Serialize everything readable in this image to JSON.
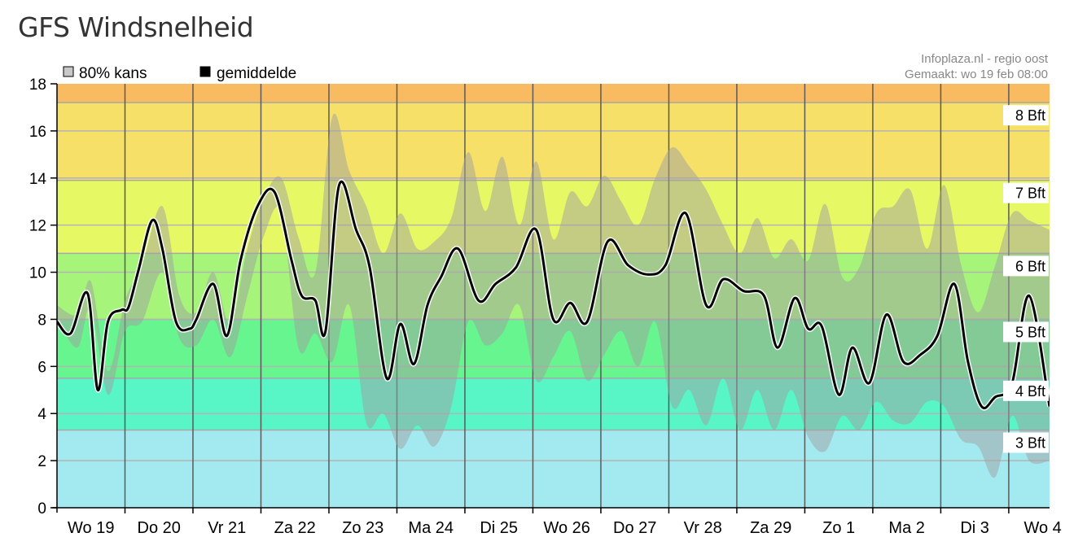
{
  "page": {
    "title": "GFS Windsnelheid"
  },
  "chart_data": {
    "type": "area",
    "ylim": [
      0,
      18
    ],
    "y_ticks": [
      0,
      2,
      4,
      6,
      8,
      10,
      12,
      14,
      16,
      18
    ],
    "x_range": [
      0,
      14.6
    ],
    "categories": [
      "Wo 19",
      "Do 20",
      "Vr 21",
      "Za 22",
      "Zo 23",
      "Ma 24",
      "Di 25",
      "Wo 26",
      "Do 27",
      "Vr 28",
      "Za 29",
      "Zo 1",
      "Ma 2",
      "Di 3",
      "Wo 4"
    ],
    "grid": true,
    "legend": {
      "placement": "top-left",
      "entries": [
        {
          "label": "80% kans",
          "color": "#c8c8c8"
        },
        {
          "label": "gemiddelde",
          "color": "#000000"
        }
      ]
    },
    "source": "Infoplaza.nl - regio oost",
    "created": "Gemaakt: wo 19 feb 08:00",
    "beaufort_bands": [
      {
        "label": "",
        "from": 0,
        "to": 3.3,
        "color": "#a3eaf0"
      },
      {
        "label": "3 Bft",
        "from": 3.3,
        "to": 5.5,
        "color": "#58f5c6"
      },
      {
        "label": "4 Bft",
        "from": 5.5,
        "to": 8,
        "color": "#66f58f"
      },
      {
        "label": "5 Bft",
        "from": 8,
        "to": 10.8,
        "color": "#a6f57a"
      },
      {
        "label": "6 Bft",
        "from": 10.8,
        "to": 13.9,
        "color": "#e6f864"
      },
      {
        "label": "7 Bft",
        "from": 13.9,
        "to": 17.2,
        "color": "#f6e068"
      },
      {
        "label": "8 Bft",
        "from": 17.2,
        "to": 18,
        "color": "#f8bb62"
      }
    ],
    "series": [
      {
        "name": "gemiddelde",
        "color": "#000000",
        "x": [
          0,
          0.2,
          0.45,
          0.6,
          0.75,
          0.95,
          1.05,
          1.2,
          1.4,
          1.55,
          1.75,
          1.95,
          2.05,
          2.3,
          2.5,
          2.7,
          2.95,
          3.2,
          3.45,
          3.6,
          3.8,
          3.95,
          4.15,
          4.4,
          4.6,
          4.85,
          5.05,
          5.25,
          5.45,
          5.65,
          5.9,
          6.2,
          6.45,
          6.75,
          7.05,
          7.3,
          7.55,
          7.8,
          8.1,
          8.4,
          8.7,
          8.95,
          9.25,
          9.55,
          9.8,
          10.1,
          10.4,
          10.6,
          10.85,
          11.05,
          11.25,
          11.5,
          11.7,
          11.95,
          12.2,
          12.45,
          12.7,
          12.95,
          13.2,
          13.4,
          13.6,
          13.8,
          14.05,
          14.3,
          14.6
        ],
        "values": [
          7.9,
          7.4,
          9.1,
          5.0,
          7.9,
          8.4,
          8.5,
          10.1,
          12.2,
          11.0,
          7.9,
          7.6,
          8.0,
          9.5,
          7.3,
          10.5,
          12.8,
          13.4,
          10.5,
          9.0,
          8.8,
          7.5,
          13.7,
          11.8,
          10.2,
          5.5,
          7.8,
          6.1,
          8.6,
          9.8,
          11.0,
          8.8,
          9.5,
          10.2,
          11.8,
          8.0,
          8.7,
          7.9,
          11.3,
          10.3,
          9.9,
          10.3,
          12.5,
          8.6,
          9.7,
          9.2,
          9.0,
          6.8,
          8.9,
          7.6,
          7.7,
          4.8,
          6.8,
          5.3,
          8.2,
          6.2,
          6.5,
          7.3,
          9.5,
          6.2,
          4.3,
          4.7,
          5.3,
          9.0,
          4.3
        ]
      },
      {
        "name": "80% kans",
        "color": "#c0c0c0",
        "x": [
          0,
          0.3,
          0.5,
          0.75,
          1.0,
          1.25,
          1.55,
          1.8,
          2.05,
          2.3,
          2.55,
          2.8,
          3.05,
          3.3,
          3.55,
          3.8,
          4.05,
          4.3,
          4.55,
          4.8,
          5.05,
          5.3,
          5.55,
          5.8,
          6.05,
          6.3,
          6.55,
          6.8,
          7.05,
          7.3,
          7.55,
          7.8,
          8.05,
          8.3,
          8.55,
          8.8,
          9.05,
          9.3,
          9.55,
          9.8,
          10.05,
          10.3,
          10.55,
          10.8,
          11.05,
          11.3,
          11.55,
          11.8,
          12.05,
          12.3,
          12.55,
          12.8,
          13.05,
          13.3,
          13.55,
          13.8,
          14.05,
          14.3,
          14.6
        ],
        "upper": [
          8.6,
          8.2,
          9.6,
          5.8,
          8.8,
          10.3,
          12.8,
          9.0,
          8.3,
          10.0,
          7.8,
          11.0,
          13.2,
          14.0,
          11.5,
          10.0,
          16.6,
          14.3,
          12.8,
          10.8,
          12.5,
          11.0,
          11.3,
          12.3,
          15.1,
          12.6,
          14.9,
          12.0,
          14.7,
          11.4,
          13.4,
          12.8,
          14.1,
          13.0,
          12.0,
          14.0,
          15.3,
          14.5,
          13.5,
          12.0,
          10.8,
          12.3,
          10.6,
          11.4,
          10.5,
          12.9,
          9.8,
          10.2,
          12.5,
          12.8,
          13.5,
          11.0,
          13.7,
          10.3,
          8.3,
          10.3,
          12.5,
          12.2,
          11.8
        ],
        "lower": [
          8.0,
          6.8,
          8.5,
          4.8,
          7.5,
          7.9,
          10.0,
          7.2,
          6.9,
          8.0,
          6.4,
          9.0,
          11.6,
          12.5,
          6.8,
          7.4,
          6.2,
          8.6,
          3.6,
          4.0,
          2.5,
          3.5,
          2.6,
          4.3,
          7.9,
          6.9,
          7.4,
          8.6,
          5.4,
          6.4,
          7.5,
          5.4,
          6.5,
          7.5,
          6.0,
          7.9,
          4.3,
          5.0,
          3.5,
          5.5,
          3.3,
          5.0,
          3.3,
          5.0,
          3.0,
          2.4,
          3.9,
          3.3,
          4.5,
          3.7,
          3.6,
          4.5,
          4.3,
          2.9,
          2.6,
          1.3,
          3.9,
          2.0,
          2.0
        ]
      }
    ]
  }
}
